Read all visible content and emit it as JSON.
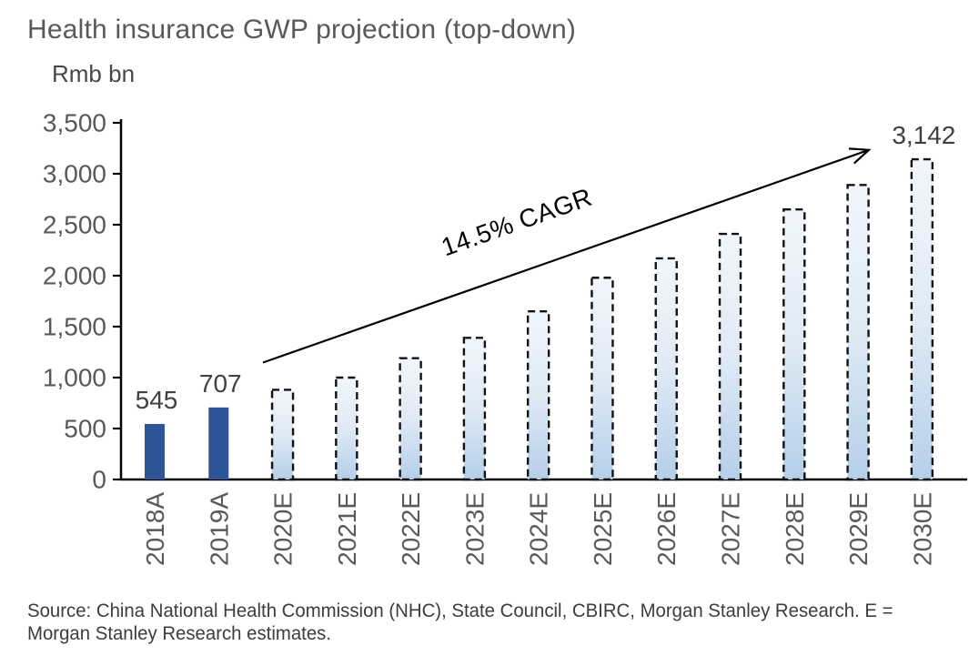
{
  "chart_data": {
    "type": "bar",
    "title": "Health insurance GWP projection (top-down)",
    "unit_label": "Rmb bn",
    "categories": [
      "2018A",
      "2019A",
      "2020E",
      "2021E",
      "2022E",
      "2023E",
      "2024E",
      "2025E",
      "2026E",
      "2027E",
      "2028E",
      "2029E",
      "2030E"
    ],
    "values": [
      545,
      707,
      880,
      1000,
      1190,
      1390,
      1650,
      1980,
      2170,
      2410,
      2650,
      2890,
      3142
    ],
    "bar_styles": [
      "actual",
      "actual",
      "estimate",
      "estimate",
      "estimate",
      "estimate",
      "estimate",
      "estimate",
      "estimate",
      "estimate",
      "estimate",
      "estimate",
      "estimate"
    ],
    "bar_labels": [
      "545",
      "707",
      "",
      "",
      "",
      "",
      "",
      "",
      "",
      "",
      "",
      "",
      "3,142"
    ],
    "ylim": [
      0,
      3500
    ],
    "yticks": [
      0,
      500,
      1000,
      1500,
      2000,
      2500,
      3000,
      3500
    ],
    "ytick_labels": [
      "0",
      "500",
      "1,000",
      "1,500",
      "2,000",
      "2,500",
      "3,000",
      "3,500"
    ],
    "grid": false,
    "legend": "none",
    "annotation": {
      "type": "arrow",
      "label": "14.5% CAGR"
    }
  },
  "source": {
    "line1": "Source: China National Health Commission (NHC), State Council, CBIRC, Morgan Stanley Research. E =",
    "line2": "Morgan Stanley Research estimates."
  },
  "colors": {
    "actual_bar": "#2E5597",
    "estimate_bar_top": "#F1F6FC",
    "estimate_bar_mid": "#DFEAF5",
    "estimate_bar_bottom": "#B5CFE9",
    "estimate_border": "#121212",
    "axis": "#000000",
    "tick_label": "#595959",
    "value_label": "#404040",
    "annotation": "#000000"
  }
}
